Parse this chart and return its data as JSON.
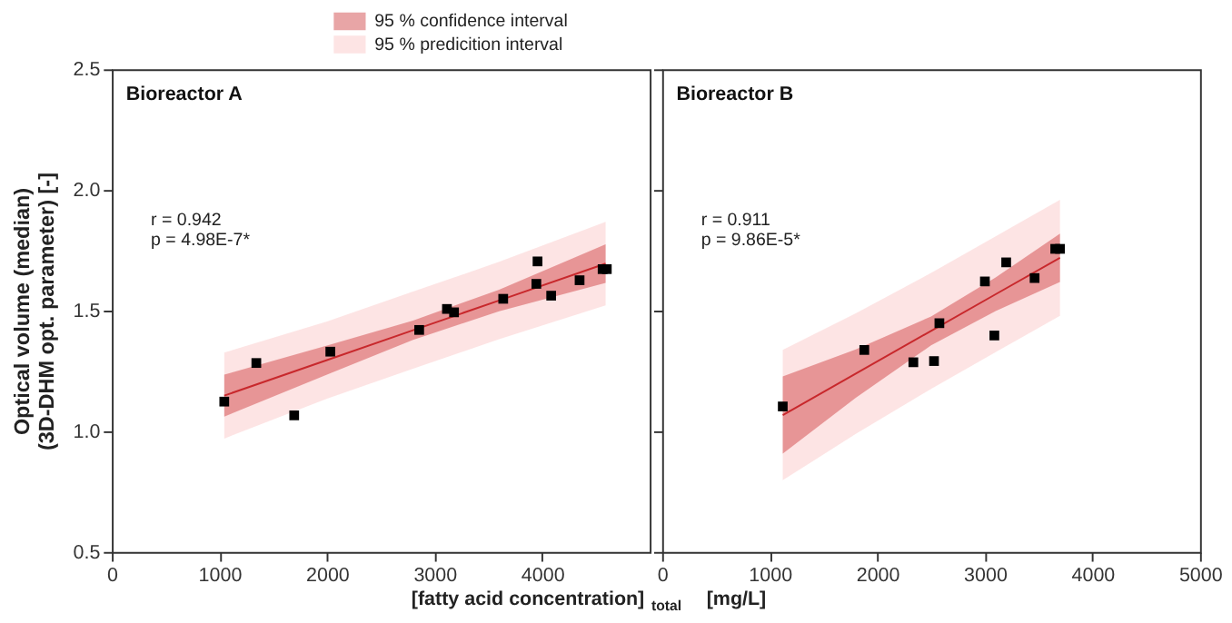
{
  "chart_data": [
    {
      "type": "scatter",
      "title": "Bioreactor A",
      "xlabel": "[fatty acid concentration]$_{total}$ [mg/L]",
      "ylabel": "Optical volume (median)\n(3D-DHM  opt. parameter)  [-]",
      "annotations": [
        "r = 0.942",
        "p = 4.98E-7*"
      ],
      "xlim": [
        0,
        5000
      ],
      "xticks": [
        0,
        1000,
        2000,
        3000,
        4000
      ],
      "ylim": [
        0.5,
        2.5
      ],
      "yticks": [
        {
          "value": 0.5,
          "label": "0.5"
        },
        {
          "value": 1,
          "label": "1.0"
        },
        {
          "value": 1.5,
          "label": "1.5"
        },
        {
          "value": 2,
          "label": "2.0"
        },
        {
          "value": 2.5,
          "label": "2.5"
        }
      ],
      "marker": "square",
      "legend": "top",
      "series": [
        {
          "type": "line",
          "name": "95 % confidence interval",
          "color": "#c8282c",
          "marker": "none",
          "x": [
            1045,
            2000,
            2800,
            3600,
            4590
          ],
          "values": [
            1.148,
            1.295,
            1.419,
            1.542,
            1.695
          ],
          "lower": [
            1.061,
            1.235,
            1.379,
            1.497,
            1.615
          ],
          "upper": [
            1.235,
            1.355,
            1.459,
            1.587,
            1.775
          ]
        },
        {
          "type": "line",
          "name": "95 % predicition interval",
          "color": "#fabfbf",
          "x": [
            1045,
            2000,
            2800,
            3600,
            4590
          ],
          "values": [
            null,
            null,
            null,
            null,
            null
          ],
          "lower": [
            0.97,
            1.135,
            1.259,
            1.382,
            1.522
          ],
          "upper": [
            1.326,
            1.455,
            1.579,
            1.702,
            1.868
          ]
        },
        {
          "color": "#000000",
          "x": [
            1045,
            1343,
            1695,
            2031,
            2857,
            3115,
            3181,
            3638,
            3946,
            3957,
            4084,
            4348,
            4562,
            4601
          ],
          "values": [
            1.123,
            1.283,
            1.066,
            1.33,
            1.42,
            1.507,
            1.493,
            1.549,
            1.611,
            1.704,
            1.562,
            1.626,
            1.672,
            1.672
          ]
        }
      ]
    },
    {
      "type": "scatter",
      "title": "Bioreactor B",
      "annotations": [
        "r = 0.911",
        "p = 9.86E-5*"
      ],
      "xlim": [
        0,
        5000
      ],
      "xticks": [
        0,
        1000,
        2000,
        3000,
        4000,
        5000
      ],
      "ylim": [
        0.5,
        2.5
      ],
      "yticks": [
        {
          "value": 0.5,
          "label": null
        },
        {
          "value": 1.0,
          "label": null
        },
        {
          "value": 1.5,
          "label": null
        },
        {
          "value": 2.0,
          "label": null
        },
        {
          "value": 2.5,
          "label": null
        }
      ],
      "tick_labels": "x",
      "marker": "square",
      "series": [
        {
          "type": "line",
          "color": "#c8282c",
          "marker": "none",
          "x": [
            1121,
            1800,
            2500,
            3100,
            3698
          ],
          "values": [
            1.067,
            1.239,
            1.416,
            1.568,
            1.719
          ],
          "lower": [
            0.907,
            1.139,
            1.356,
            1.498,
            1.619
          ],
          "upper": [
            1.227,
            1.339,
            1.476,
            1.638,
            1.819
          ]
        },
        {
          "type": "line",
          "color": "#fabfbf",
          "x": [
            1121,
            1800,
            2500,
            3100,
            3698
          ],
          "values": [
            null,
            null,
            null,
            null,
            null
          ],
          "lower": [
            0.797,
            0.989,
            1.176,
            1.328,
            1.479
          ],
          "upper": [
            1.337,
            1.489,
            1.656,
            1.808,
            1.959
          ]
        },
        {
          "color": "#000000",
          "x": [
            1121,
            1879,
            2335,
            2527,
            2577,
            3000,
            3088,
            3198,
            3462,
            3654,
            3698
          ],
          "values": [
            1.103,
            1.337,
            1.286,
            1.291,
            1.448,
            1.621,
            1.397,
            1.7,
            1.635,
            1.756,
            1.756
          ]
        }
      ]
    }
  ]
}
